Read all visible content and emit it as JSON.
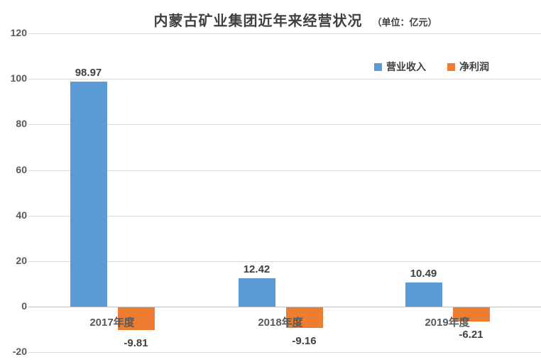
{
  "title": {
    "main": "内蒙古矿业集团近年来经营状况",
    "unit": "（单位：亿元）"
  },
  "chart_data": {
    "type": "bar",
    "title": "内蒙古矿业集团近年来经营状况",
    "unit_label": "（单位：亿元）",
    "categories": [
      "2017年度",
      "2018年度",
      "2019年度"
    ],
    "series": [
      {
        "name": "营业收入",
        "color": "#5B9BD5",
        "values": [
          98.97,
          12.42,
          10.49
        ]
      },
      {
        "name": "净利润",
        "color": "#ED7D31",
        "values": [
          -9.81,
          -9.16,
          -6.21
        ]
      }
    ],
    "data_labels": [
      "98.97",
      "12.42",
      "10.49",
      "-9.81",
      "-9.16",
      "-6.21"
    ],
    "xlabel": "",
    "ylabel": "",
    "ylim": [
      -20,
      120
    ],
    "ytick_step": 20,
    "yticks": [
      120,
      100,
      80,
      60,
      40,
      20,
      0,
      -20
    ],
    "grid": true,
    "legend_position": "top-right"
  },
  "colors": {
    "revenue_bar": "#5B9BD5",
    "profit_bar": "#ED7D31",
    "gridline": "#d9d9d9",
    "zero_axis": "#bfbfbf",
    "title_text": "#404040",
    "axis_text": "#595959"
  }
}
